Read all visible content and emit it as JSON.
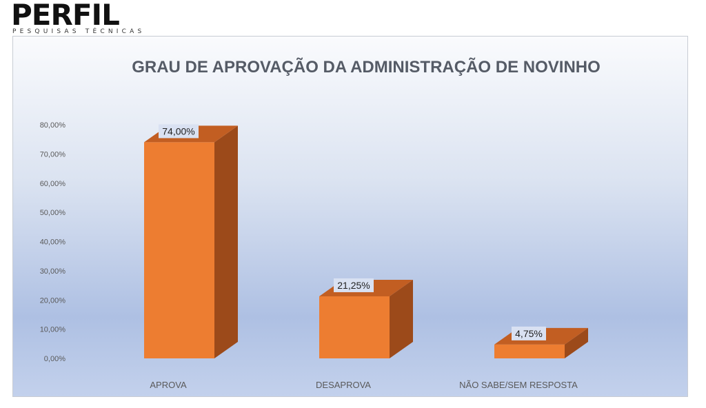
{
  "logo": {
    "name": "PERFIL",
    "tagline": "PESQUISAS TÉCNICAS"
  },
  "colors": {
    "bar_front": "#ED7D31",
    "bar_side": "#9C4A1A",
    "bar_top": "#C25E22",
    "label_bg": "#D9E1F2"
  },
  "chart_data": {
    "type": "bar",
    "title": "GRAU DE APROVAÇÃO DA ADMINISTRAÇÃO DE NOVINHO",
    "categories": [
      "APROVA",
      "DESAPROVA",
      "NÃO SABE/SEM RESPOSTA"
    ],
    "values": [
      74.0,
      21.25,
      4.75
    ],
    "data_labels": [
      "74,00%",
      "21,25%",
      "4,75%"
    ],
    "y_ticks": [
      "0,00%",
      "10,00%",
      "20,00%",
      "30,00%",
      "40,00%",
      "50,00%",
      "60,00%",
      "70,00%",
      "80,00%"
    ],
    "ylim": [
      0,
      80
    ],
    "grid": false,
    "legend": "none",
    "style": "3d-column"
  }
}
